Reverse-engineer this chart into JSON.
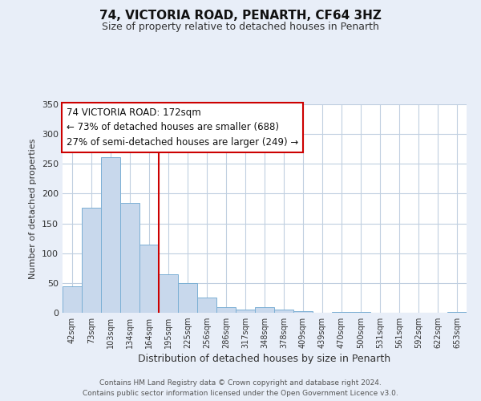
{
  "title": "74, VICTORIA ROAD, PENARTH, CF64 3HZ",
  "subtitle": "Size of property relative to detached houses in Penarth",
  "xlabel": "Distribution of detached houses by size in Penarth",
  "ylabel": "Number of detached properties",
  "bar_labels": [
    "42sqm",
    "73sqm",
    "103sqm",
    "134sqm",
    "164sqm",
    "195sqm",
    "225sqm",
    "256sqm",
    "286sqm",
    "317sqm",
    "348sqm",
    "378sqm",
    "409sqm",
    "439sqm",
    "470sqm",
    "500sqm",
    "531sqm",
    "561sqm",
    "592sqm",
    "622sqm",
    "653sqm"
  ],
  "bar_values": [
    45,
    176,
    261,
    184,
    114,
    65,
    50,
    25,
    9,
    6,
    9,
    5,
    3,
    0,
    1,
    1,
    0,
    0,
    0,
    0,
    2
  ],
  "bar_color": "#c8d8ec",
  "bar_edge_color": "#7bafd4",
  "ylim": [
    0,
    350
  ],
  "yticks": [
    0,
    50,
    100,
    150,
    200,
    250,
    300,
    350
  ],
  "vline_x": 4.5,
  "vline_color": "#cc0000",
  "annotation_title": "74 VICTORIA ROAD: 172sqm",
  "annotation_line1": "← 73% of detached houses are smaller (688)",
  "annotation_line2": "27% of semi-detached houses are larger (249) →",
  "annotation_box_color": "#ffffff",
  "annotation_box_edge": "#cc0000",
  "footer_line1": "Contains HM Land Registry data © Crown copyright and database right 2024.",
  "footer_line2": "Contains public sector information licensed under the Open Government Licence v3.0.",
  "background_color": "#e8eef8",
  "plot_background": "#ffffff",
  "grid_color": "#c0cfe0"
}
